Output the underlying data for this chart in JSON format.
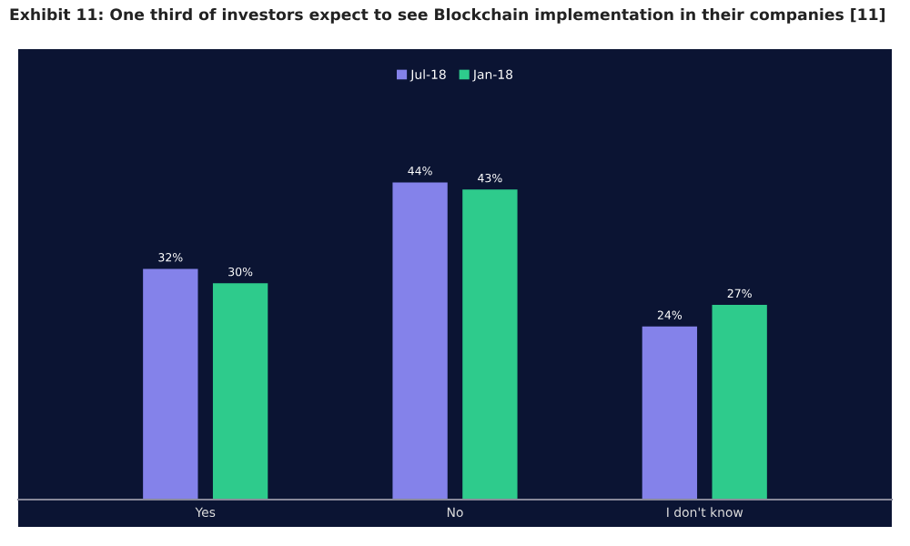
{
  "chart_data": {
    "type": "bar",
    "title": "Exhibit 11: One third of investors expect to see Blockchain implementation in their companies [11]",
    "categories": [
      "Yes",
      "No",
      "I don't know"
    ],
    "series": [
      {
        "name": "Jul-18",
        "color": "#8482ea",
        "values": [
          32,
          44,
          24
        ],
        "value_labels": [
          "32%",
          "44%",
          "24%"
        ]
      },
      {
        "name": "Jan-18",
        "color": "#2ecb8c",
        "values": [
          30,
          43,
          27
        ],
        "value_labels": [
          "30%",
          "43%",
          "27%"
        ]
      }
    ],
    "legend": "top",
    "grid": false
  }
}
